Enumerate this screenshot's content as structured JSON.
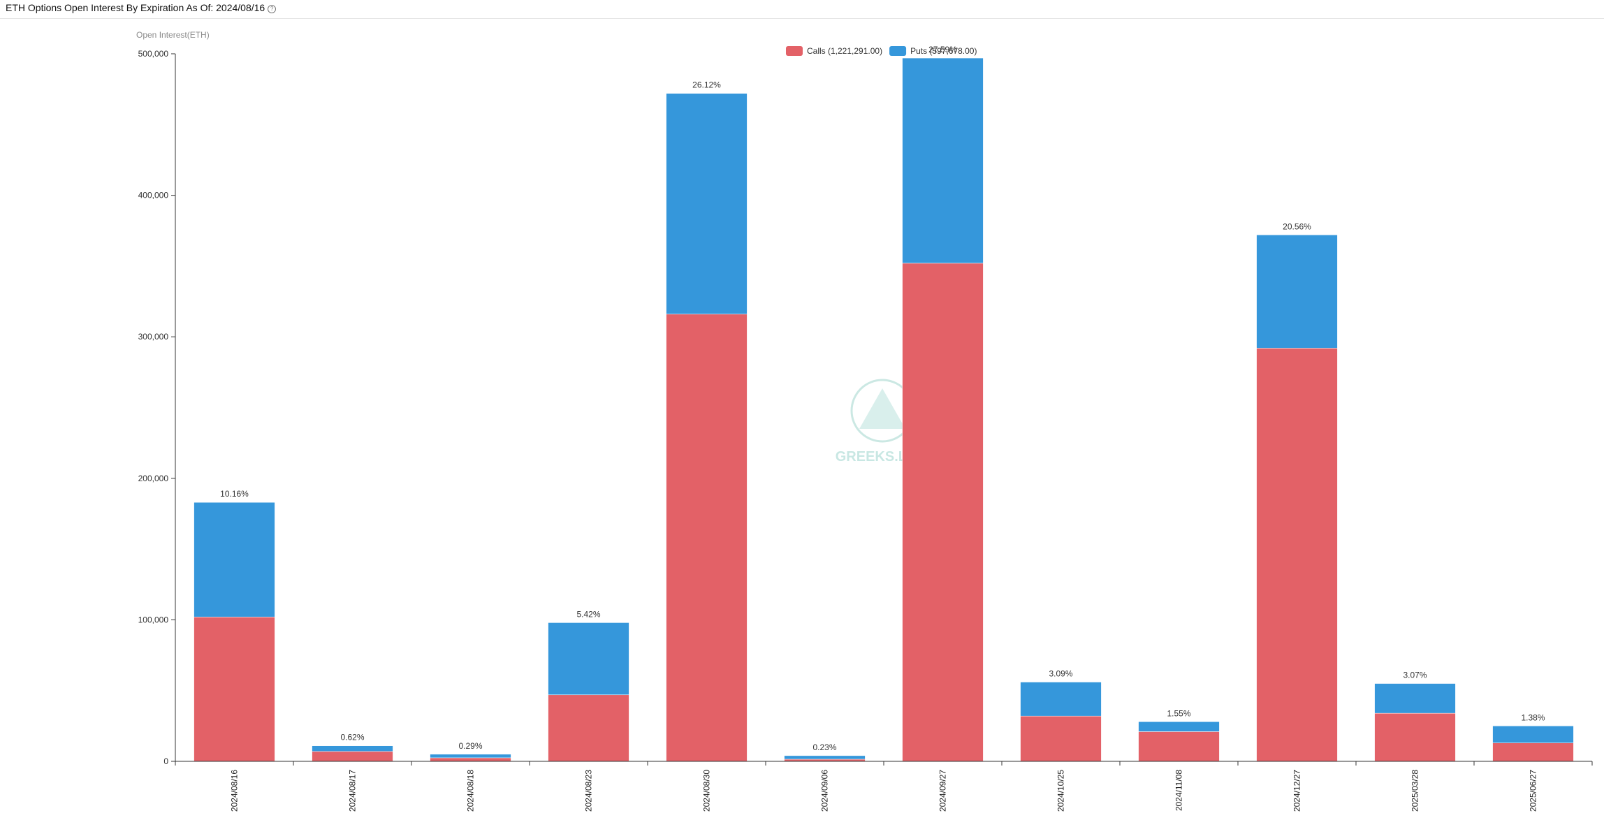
{
  "header": {
    "title": "ETH Options Open Interest By Expiration As Of: 2024/08/16",
    "help_icon": "?"
  },
  "watermark": {
    "text": "GREEKS.LIVE",
    "icon": "greeks-logo-icon"
  },
  "colors": {
    "calls": "#e36167",
    "puts": "#3597db",
    "axis": "#333333",
    "watermark": "#b8e0db"
  },
  "chart_data": {
    "type": "bar",
    "stacked": true,
    "ylabel": "Open Interest(ETH)",
    "ylim": [
      0,
      500000
    ],
    "yticks": [
      0,
      100000,
      200000,
      300000,
      400000,
      500000
    ],
    "ytick_labels": [
      "0",
      "100,000",
      "200,000",
      "300,000",
      "400,000",
      "500,000"
    ],
    "grid": false,
    "legend_position": "top-center",
    "categories": [
      "2024/08/16",
      "2024/08/17",
      "2024/08/18",
      "2024/08/23",
      "2024/08/30",
      "2024/09/06",
      "2024/09/27",
      "2024/10/25",
      "2024/11/08",
      "2024/12/27",
      "2025/03/28",
      "2025/06/27"
    ],
    "series": [
      {
        "name": "Calls",
        "legend_label": "Calls (1,221,291.00)",
        "color": "#e36167",
        "values": [
          102000,
          7000,
          2500,
          47000,
          316000,
          1500,
          352000,
          32000,
          21000,
          292000,
          34000,
          13000
        ]
      },
      {
        "name": "Puts",
        "legend_label": "Puts (597,678.00)",
        "color": "#3597db",
        "values": [
          81000,
          4000,
          2500,
          51000,
          156000,
          2500,
          145000,
          24000,
          7000,
          80000,
          21000,
          12000
        ]
      }
    ],
    "percent_labels": [
      "10.16%",
      "0.62%",
      "0.29%",
      "5.42%",
      "26.12%",
      "0.23%",
      "27.59%",
      "3.09%",
      "1.55%",
      "20.56%",
      "3.07%",
      "1.38%"
    ]
  }
}
